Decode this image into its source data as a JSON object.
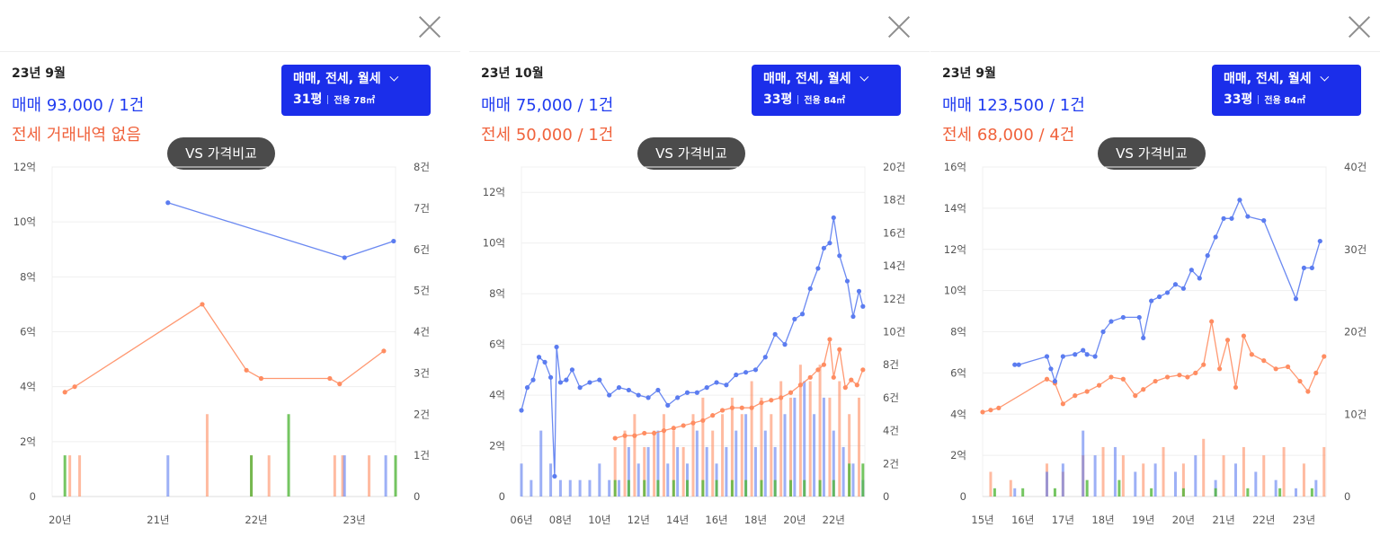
{
  "panels": [
    {
      "date": "23년 9월",
      "sale_text": "매매 93,000 / 1건",
      "jeonse_text": "전세 거래내역 없음",
      "type_label": "매매, 전세, 월세",
      "pyeong": "31평",
      "area_label": "전용 78㎡",
      "vs_label": "VS 가격비교"
    },
    {
      "date": "23년 10월",
      "sale_text": "매매 75,000 / 1건",
      "jeonse_text": "전세 50,000 / 1건",
      "type_label": "매매, 전세, 월세",
      "pyeong": "33평",
      "area_label": "전용 84㎡",
      "vs_label": "VS 가격비교"
    },
    {
      "date": "23년 9월",
      "sale_text": "매매 123,500 / 1건",
      "jeonse_text": "전세 68,000 / 4건",
      "type_label": "매매, 전세, 월세",
      "pyeong": "33평",
      "area_label": "전용 84㎡",
      "vs_label": "VS 가격비교"
    }
  ],
  "colors": {
    "sale": "#5b7cf0",
    "jeonse": "#ff8d62",
    "monthly": "#52b83b",
    "accent": "#1b2eea"
  },
  "chart_data": [
    {
      "type": "line",
      "xlim": [
        2019.92,
        2023.42
      ],
      "ylim": [
        0,
        12
      ],
      "y2lim": [
        0,
        8
      ],
      "x_ticks": [
        2020,
        2021,
        2022,
        2023
      ],
      "x_tick_labels": [
        "20년",
        "21년",
        "22년",
        "23년"
      ],
      "y_ticks": [
        0,
        2,
        4,
        6,
        8,
        10,
        12
      ],
      "y_tick_labels": [
        "0",
        "2억",
        "4억",
        "6억",
        "8억",
        "10억",
        "12억"
      ],
      "y2_ticks": [
        0,
        1,
        2,
        3,
        4,
        5,
        6,
        7,
        8
      ],
      "y2_tick_labels": [
        "0",
        "1건",
        "2건",
        "3건",
        "4건",
        "5건",
        "6건",
        "7건",
        "8건"
      ],
      "sale": {
        "x": [
          2021.1,
          2022.9,
          2023.4
        ],
        "y": [
          10.7,
          8.7,
          9.3
        ]
      },
      "jeonse": {
        "x": [
          2020.05,
          2020.15,
          2021.45,
          2021.9,
          2022.05,
          2022.75,
          2022.85,
          2023.3
        ],
        "y": [
          3.8,
          4.0,
          7.0,
          4.6,
          4.3,
          4.3,
          4.1,
          5.3
        ]
      },
      "volume": {
        "sale": {
          "x": [
            2021.1,
            2022.9,
            2023.32
          ],
          "y": [
            1,
            1,
            1
          ]
        },
        "jeonse": {
          "x": [
            2020.1,
            2020.2,
            2021.5,
            2021.95,
            2022.13,
            2022.8,
            2022.88,
            2023.15
          ],
          "y": [
            1,
            1,
            2,
            1,
            1,
            1,
            1,
            1
          ]
        },
        "monthly": {
          "x": [
            2020.05,
            2021.95,
            2022.33,
            2023.42
          ],
          "y": [
            1,
            1,
            2,
            1
          ]
        }
      }
    },
    {
      "type": "line",
      "xlim": [
        2006,
        2023.6
      ],
      "ylim": [
        0,
        13
      ],
      "y2lim": [
        0,
        20
      ],
      "x_ticks": [
        2006,
        2008,
        2010,
        2012,
        2014,
        2016,
        2018,
        2020,
        2022
      ],
      "x_tick_labels": [
        "06년",
        "08년",
        "10년",
        "12년",
        "14년",
        "16년",
        "18년",
        "20년",
        "22년"
      ],
      "y_ticks": [
        0,
        2,
        4,
        6,
        8,
        10,
        12
      ],
      "y_tick_labels": [
        "0",
        "2억",
        "4억",
        "6억",
        "8억",
        "10억",
        "12억"
      ],
      "y2_ticks": [
        0,
        2,
        4,
        6,
        8,
        10,
        12,
        14,
        16,
        18,
        20
      ],
      "y2_tick_labels": [
        "0",
        "2건",
        "4건",
        "6건",
        "8건",
        "10건",
        "12건",
        "14건",
        "16건",
        "18건",
        "20건"
      ],
      "sale": {
        "x": [
          2006.0,
          2006.3,
          2006.6,
          2006.9,
          2007.2,
          2007.5,
          2007.7,
          2007.8,
          2008.0,
          2008.3,
          2008.6,
          2009.0,
          2009.5,
          2010.0,
          2010.5,
          2011.0,
          2011.5,
          2012.0,
          2012.5,
          2013.0,
          2013.5,
          2014.0,
          2014.5,
          2015.0,
          2015.5,
          2016.0,
          2016.5,
          2017.0,
          2017.5,
          2018.0,
          2018.5,
          2019.0,
          2019.5,
          2020.0,
          2020.4,
          2020.8,
          2021.2,
          2021.5,
          2021.8,
          2022.0,
          2022.3,
          2022.7,
          2023.0,
          2023.3,
          2023.5
        ],
        "y": [
          3.4,
          4.3,
          4.6,
          5.5,
          5.3,
          4.7,
          0.8,
          5.9,
          4.5,
          4.6,
          5.0,
          4.3,
          4.5,
          4.6,
          4.0,
          4.3,
          4.2,
          4.0,
          3.9,
          4.2,
          3.6,
          3.9,
          4.1,
          4.1,
          4.3,
          4.5,
          4.4,
          4.8,
          4.9,
          5.0,
          5.5,
          6.4,
          6.0,
          7.0,
          7.2,
          8.2,
          9.0,
          9.8,
          10.0,
          11.0,
          9.5,
          8.5,
          7.1,
          8.1,
          7.5
        ]
      },
      "jeonse": {
        "x": [
          2010.8,
          2011.3,
          2011.8,
          2012.3,
          2012.8,
          2013.3,
          2013.8,
          2014.3,
          2014.8,
          2015.3,
          2015.8,
          2016.3,
          2016.8,
          2017.3,
          2017.8,
          2018.3,
          2018.8,
          2019.3,
          2019.8,
          2020.3,
          2020.8,
          2021.2,
          2021.5,
          2021.8,
          2022.0,
          2022.3,
          2022.6,
          2022.9,
          2023.2,
          2023.5
        ],
        "y": [
          2.3,
          2.4,
          2.4,
          2.5,
          2.5,
          2.6,
          2.7,
          2.8,
          2.9,
          3.0,
          3.2,
          3.4,
          3.5,
          3.5,
          3.5,
          3.7,
          3.8,
          3.9,
          4.1,
          4.4,
          4.7,
          5.0,
          5.2,
          6.2,
          4.7,
          5.8,
          4.3,
          4.6,
          4.4,
          5.0
        ]
      },
      "volume": {
        "sale": {
          "x": [
            2006.0,
            2006.5,
            2007.0,
            2007.5,
            2008.0,
            2008.5,
            2009.0,
            2009.5,
            2010.0,
            2010.5,
            2011.0,
            2011.5,
            2012.0,
            2012.5,
            2013.0,
            2013.5,
            2014.0,
            2014.5,
            2015.0,
            2015.5,
            2016.0,
            2016.5,
            2017.0,
            2017.5,
            2018.0,
            2018.5,
            2019.0,
            2019.5,
            2020.0,
            2020.5,
            2021.0,
            2021.5,
            2022.0,
            2022.5,
            2023.0,
            2023.5
          ],
          "y": [
            2,
            1,
            4,
            2,
            1,
            1,
            1,
            1,
            2,
            1,
            1,
            3,
            2,
            3,
            4,
            2,
            3,
            2,
            4,
            3,
            2,
            3,
            4,
            5,
            3,
            4,
            3,
            5,
            6,
            7,
            5,
            6,
            4,
            3,
            2,
            1
          ]
        },
        "jeonse": {
          "x": [
            2010.8,
            2011.3,
            2011.8,
            2012.3,
            2012.8,
            2013.3,
            2013.8,
            2014.3,
            2014.8,
            2015.3,
            2015.8,
            2016.3,
            2016.8,
            2017.3,
            2017.8,
            2018.3,
            2018.8,
            2019.3,
            2019.8,
            2020.3,
            2020.8,
            2021.3,
            2021.8,
            2022.3,
            2022.8,
            2023.3
          ],
          "y": [
            3,
            4,
            5,
            3,
            4,
            5,
            4,
            3,
            5,
            6,
            4,
            5,
            6,
            5,
            7,
            6,
            5,
            7,
            6,
            8,
            7,
            8,
            6,
            7,
            5,
            6
          ]
        },
        "monthly": {
          "x": [
            2010.8,
            2011.5,
            2012.3,
            2013.0,
            2013.8,
            2014.5,
            2015.3,
            2016.0,
            2016.8,
            2017.5,
            2018.3,
            2019.0,
            2019.8,
            2020.5,
            2021.3,
            2022.0,
            2022.8,
            2023.5
          ],
          "y": [
            1,
            1,
            1,
            1,
            1,
            1,
            1,
            1,
            1,
            1,
            1,
            1,
            1,
            1,
            1,
            1,
            2,
            2
          ]
        }
      }
    },
    {
      "type": "line",
      "xlim": [
        2015,
        2023.55
      ],
      "ylim": [
        0,
        16
      ],
      "y2lim": [
        0,
        40
      ],
      "x_ticks": [
        2015,
        2016,
        2017,
        2018,
        2019,
        2020,
        2021,
        2022,
        2023
      ],
      "x_tick_labels": [
        "15년",
        "16년",
        "17년",
        "18년",
        "19년",
        "20년",
        "21년",
        "22년",
        "23년"
      ],
      "y_ticks": [
        0,
        2,
        4,
        6,
        8,
        10,
        12,
        14,
        16
      ],
      "y_tick_labels": [
        "0",
        "2억",
        "4억",
        "6억",
        "8억",
        "10억",
        "12억",
        "14억",
        "16억"
      ],
      "y2_ticks": [
        0,
        10,
        20,
        30,
        40
      ],
      "y2_tick_labels": [
        "0",
        "10건",
        "20건",
        "30건",
        "40건"
      ],
      "sale": {
        "x": [
          2015.8,
          2015.9,
          2016.6,
          2016.7,
          2016.8,
          2017.0,
          2017.3,
          2017.5,
          2017.6,
          2017.8,
          2018.0,
          2018.2,
          2018.5,
          2018.9,
          2019.0,
          2019.2,
          2019.4,
          2019.6,
          2019.8,
          2020.0,
          2020.2,
          2020.4,
          2020.6,
          2020.8,
          2021.0,
          2021.2,
          2021.4,
          2021.6,
          2022.0,
          2022.8,
          2023.0,
          2023.2,
          2023.4
        ],
        "y": [
          6.4,
          6.4,
          6.8,
          6.2,
          5.6,
          6.8,
          6.9,
          7.1,
          6.9,
          6.8,
          8.0,
          8.5,
          8.7,
          8.7,
          7.7,
          9.5,
          9.7,
          9.9,
          10.3,
          10.1,
          11.0,
          10.6,
          11.7,
          12.6,
          13.5,
          13.5,
          14.4,
          13.6,
          13.4,
          9.6,
          11.1,
          11.1,
          12.4
        ]
      },
      "jeonse": {
        "x": [
          2015.0,
          2015.2,
          2015.4,
          2016.6,
          2016.8,
          2017.0,
          2017.3,
          2017.6,
          2017.9,
          2018.2,
          2018.5,
          2018.8,
          2019.0,
          2019.3,
          2019.6,
          2019.9,
          2020.1,
          2020.3,
          2020.5,
          2020.7,
          2020.9,
          2021.1,
          2021.3,
          2021.5,
          2021.7,
          2022.0,
          2022.3,
          2022.6,
          2022.9,
          2023.1,
          2023.3,
          2023.5
        ],
        "y": [
          4.1,
          4.2,
          4.3,
          5.7,
          5.5,
          4.5,
          4.9,
          5.1,
          5.4,
          5.8,
          5.7,
          4.9,
          5.2,
          5.6,
          5.8,
          5.9,
          5.8,
          6.0,
          6.4,
          8.5,
          6.2,
          7.6,
          5.3,
          7.8,
          6.9,
          6.6,
          6.2,
          6.3,
          5.6,
          5.1,
          6.0,
          6.8
        ]
      },
      "volume": {
        "sale": {
          "x": [
            2015.8,
            2016.6,
            2017.0,
            2017.5,
            2017.8,
            2018.3,
            2018.8,
            2019.3,
            2019.8,
            2020.3,
            2020.8,
            2021.3,
            2021.8,
            2022.3,
            2022.8,
            2023.3
          ],
          "y": [
            1,
            3,
            4,
            8,
            5,
            6,
            3,
            4,
            3,
            5,
            2,
            4,
            3,
            2,
            1,
            2
          ]
        },
        "jeonse": {
          "x": [
            2015.2,
            2015.7,
            2016.6,
            2017.0,
            2017.5,
            2018.0,
            2018.5,
            2019.0,
            2019.5,
            2020.0,
            2020.5,
            2021.0,
            2021.5,
            2022.0,
            2022.5,
            2023.0,
            2023.5
          ],
          "y": [
            3,
            2,
            4,
            3,
            5,
            6,
            5,
            4,
            6,
            4,
            7,
            5,
            6,
            5,
            6,
            4,
            6
          ]
        },
        "monthly": {
          "x": [
            2015.3,
            2016.0,
            2016.8,
            2017.6,
            2018.4,
            2019.2,
            2020.0,
            2020.8,
            2021.6,
            2022.4,
            2023.2
          ],
          "y": [
            1,
            1,
            1,
            2,
            2,
            1,
            1,
            1,
            1,
            1,
            1
          ]
        }
      }
    }
  ]
}
